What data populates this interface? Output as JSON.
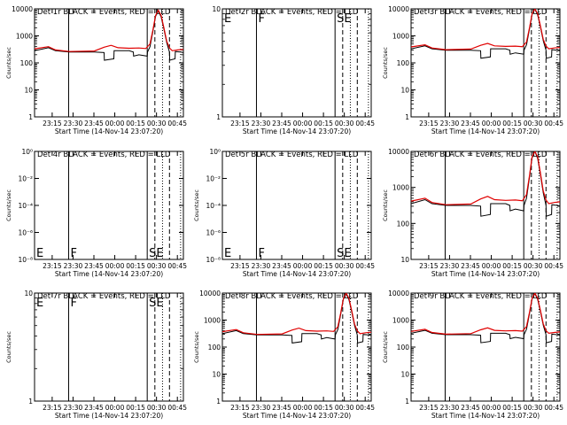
{
  "chart_data": [
    {
      "type": "line",
      "title": "Det 1r BLACK = Events, RED = LLD",
      "xlabel": "Start Time (14-Nov-14 23:07:20)",
      "ylabel": "Counts/sec",
      "yscale": "log",
      "ylim": [
        1,
        10000
      ],
      "ytick_labels": [
        "1",
        "10",
        "100",
        "1000",
        "10000"
      ],
      "xtick_labels": [
        "23:15",
        "23:30",
        "23:45",
        "00:00",
        "00:15",
        "00:30",
        "00:45"
      ],
      "region_labels": [],
      "has_data": true,
      "series": [
        {
          "name": "BLACK = Events",
          "color": "#000000"
        },
        {
          "name": "RED = LLD",
          "color": "#e00000"
        }
      ]
    },
    {
      "type": "line",
      "title": "Det 2r BLACK = Events, RED = LLD",
      "xlabel": "Start Time (14-Nov-14 23:07:20)",
      "ylabel": "",
      "yscale": "log",
      "ylim": [
        1,
        10
      ],
      "ytick_labels": [
        "1",
        "10"
      ],
      "xtick_labels": [
        "23:15",
        "23:30",
        "23:45",
        "00:00",
        "00:15",
        "00:30",
        "00:45"
      ],
      "region_labels": [
        "E",
        "F",
        "SE"
      ],
      "has_data": false,
      "series": []
    },
    {
      "type": "line",
      "title": "Det 3r BLACK = Events, RED = LLD",
      "xlabel": "Start Time (14-Nov-14 23:07:20)",
      "ylabel": "Counts/sec",
      "yscale": "log",
      "ylim": [
        1,
        10000
      ],
      "ytick_labels": [
        "1",
        "10",
        "100",
        "1000",
        "10000"
      ],
      "xtick_labels": [
        "23:15",
        "23:30",
        "23:45",
        "00:00",
        "00:15",
        "00:30",
        "00:45"
      ],
      "region_labels": [],
      "has_data": true,
      "series": [
        {
          "name": "BLACK = Events",
          "color": "#000000"
        },
        {
          "name": "RED = LLD",
          "color": "#e00000"
        }
      ]
    },
    {
      "type": "line",
      "title": "Det 4r BLACK = Events, RED = LLD",
      "xlabel": "Start Time (14-Nov-14 23:07:20)",
      "ylabel": "Counts/sec",
      "yscale": "log",
      "ylim": [
        1e-08,
        1
      ],
      "ytick_labels": [
        "10⁻⁸",
        "10⁻⁶",
        "10⁻⁴",
        "10⁻²",
        "10⁰"
      ],
      "xtick_labels": [
        "23:15",
        "23:30",
        "23:45",
        "00:00",
        "00:15",
        "00:30",
        "00:45"
      ],
      "region_labels": [
        "E",
        "F",
        "SE"
      ],
      "has_data": false,
      "series": []
    },
    {
      "type": "line",
      "title": "Det 5r BLACK = Events, RED = LLD",
      "xlabel": "Start Time (14-Nov-14 23:07:20)",
      "ylabel": "Counts/sec",
      "yscale": "log",
      "ylim": [
        1e-08,
        1
      ],
      "ytick_labels": [
        "10⁻⁸",
        "10⁻⁶",
        "10⁻⁴",
        "10⁻²",
        "10⁰"
      ],
      "xtick_labels": [
        "23:15",
        "23:30",
        "23:45",
        "00:00",
        "00:15",
        "00:30",
        "00:45"
      ],
      "region_labels": [
        "E",
        "F",
        "SE"
      ],
      "has_data": false,
      "series": []
    },
    {
      "type": "line",
      "title": "Det 6r BLACK = Events, RED = LLD",
      "xlabel": "Start Time (14-Nov-14 23:07:20)",
      "ylabel": "Counts/sec",
      "yscale": "log",
      "ylim": [
        10,
        10000
      ],
      "ytick_labels": [
        "10",
        "100",
        "1000",
        "10000"
      ],
      "xtick_labels": [
        "23:15",
        "23:30",
        "23:45",
        "00:00",
        "00:15",
        "00:30",
        "00:45"
      ],
      "region_labels": [],
      "has_data": true,
      "series": [
        {
          "name": "BLACK = Events",
          "color": "#000000"
        },
        {
          "name": "RED = LLD",
          "color": "#e00000"
        }
      ]
    },
    {
      "type": "line",
      "title": "Det 7r BLACK = Events, RED = LLD",
      "xlabel": "Start Time (14-Nov-14 23:07:20)",
      "ylabel": "Counts/sec",
      "yscale": "log",
      "ylim": [
        1,
        10
      ],
      "ytick_labels": [
        "1",
        "10"
      ],
      "xtick_labels": [
        "23:15",
        "23:30",
        "23:45",
        "00:00",
        "00:15",
        "00:30",
        "00:45"
      ],
      "region_labels": [
        "E",
        "F",
        "SE"
      ],
      "has_data": false,
      "series": []
    },
    {
      "type": "line",
      "title": "Det 8r BLACK = Events, RED = LLD",
      "xlabel": "Start Time (14-Nov-14 23:07:20)",
      "ylabel": "Counts/sec",
      "yscale": "log",
      "ylim": [
        1,
        10000
      ],
      "ytick_labels": [
        "1",
        "10",
        "100",
        "1000",
        "10000"
      ],
      "xtick_labels": [
        "23:15",
        "23:30",
        "23:45",
        "00:00",
        "00:15",
        "00:30",
        "00:45"
      ],
      "region_labels": [],
      "has_data": true,
      "series": [
        {
          "name": "BLACK = Events",
          "color": "#000000"
        },
        {
          "name": "RED = LLD",
          "color": "#e00000"
        }
      ]
    },
    {
      "type": "line",
      "title": "Det 9r BLACK = Events, RED = LLD",
      "xlabel": "Start Time (14-Nov-14 23:07:20)",
      "ylabel": "Counts/sec",
      "yscale": "log",
      "ylim": [
        1,
        10000
      ],
      "ytick_labels": [
        "1",
        "10",
        "100",
        "1000",
        "10000"
      ],
      "xtick_labels": [
        "23:15",
        "23:30",
        "23:45",
        "00:00",
        "00:15",
        "00:30",
        "00:45"
      ],
      "region_labels": [],
      "has_data": true,
      "series": [
        {
          "name": "BLACK = Events",
          "color": "#000000"
        },
        {
          "name": "RED = LLD",
          "color": "#e00000"
        }
      ]
    }
  ]
}
